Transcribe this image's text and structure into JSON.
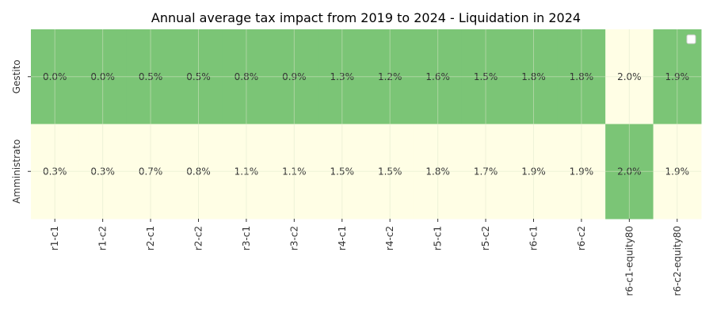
{
  "chart_data": {
    "type": "heatmap",
    "title": "Annual average tax impact from 2019 to 2024 - Liquidation in 2024",
    "xlabel": "",
    "ylabel": "",
    "rows": [
      "Gestito",
      "Amministrato"
    ],
    "columns": [
      "r1-c1",
      "r1-c2",
      "r2-c1",
      "r2-c2",
      "r3-c1",
      "r3-c2",
      "r4-c1",
      "r4-c2",
      "r5-c1",
      "r5-c2",
      "r6-c1",
      "r6-c2",
      "r6-c1-equity80",
      "r6-c2-equity80"
    ],
    "values": [
      [
        0.0,
        0.0,
        0.5,
        0.5,
        0.8,
        0.9,
        1.3,
        1.2,
        1.6,
        1.5,
        1.8,
        1.8,
        2.0,
        1.9
      ],
      [
        0.3,
        0.3,
        0.7,
        0.8,
        1.1,
        1.1,
        1.5,
        1.5,
        1.8,
        1.7,
        1.9,
        1.9,
        2.0,
        1.9
      ]
    ],
    "labels": [
      [
        "0.0%",
        "0.0%",
        "0.5%",
        "0.5%",
        "0.8%",
        "0.9%",
        "1.3%",
        "1.2%",
        "1.6%",
        "1.5%",
        "1.8%",
        "1.8%",
        "2.0%",
        "1.9%"
      ],
      [
        "0.3%",
        "0.3%",
        "0.7%",
        "0.8%",
        "1.1%",
        "1.1%",
        "1.5%",
        "1.5%",
        "1.8%",
        "1.7%",
        "1.9%",
        "1.9%",
        "2.0%",
        "1.9%"
      ]
    ],
    "best_in_column": [
      [
        true,
        true,
        true,
        true,
        true,
        true,
        true,
        true,
        true,
        true,
        true,
        true,
        false,
        true
      ],
      [
        false,
        false,
        false,
        false,
        false,
        false,
        false,
        false,
        false,
        false,
        false,
        false,
        true,
        false
      ]
    ],
    "colors": {
      "best": "#7bc576",
      "other": "#fffee5",
      "text": "#333333",
      "title": "#222222",
      "grid": "#dde8cc"
    },
    "legend": "top-right",
    "grid": true
  }
}
